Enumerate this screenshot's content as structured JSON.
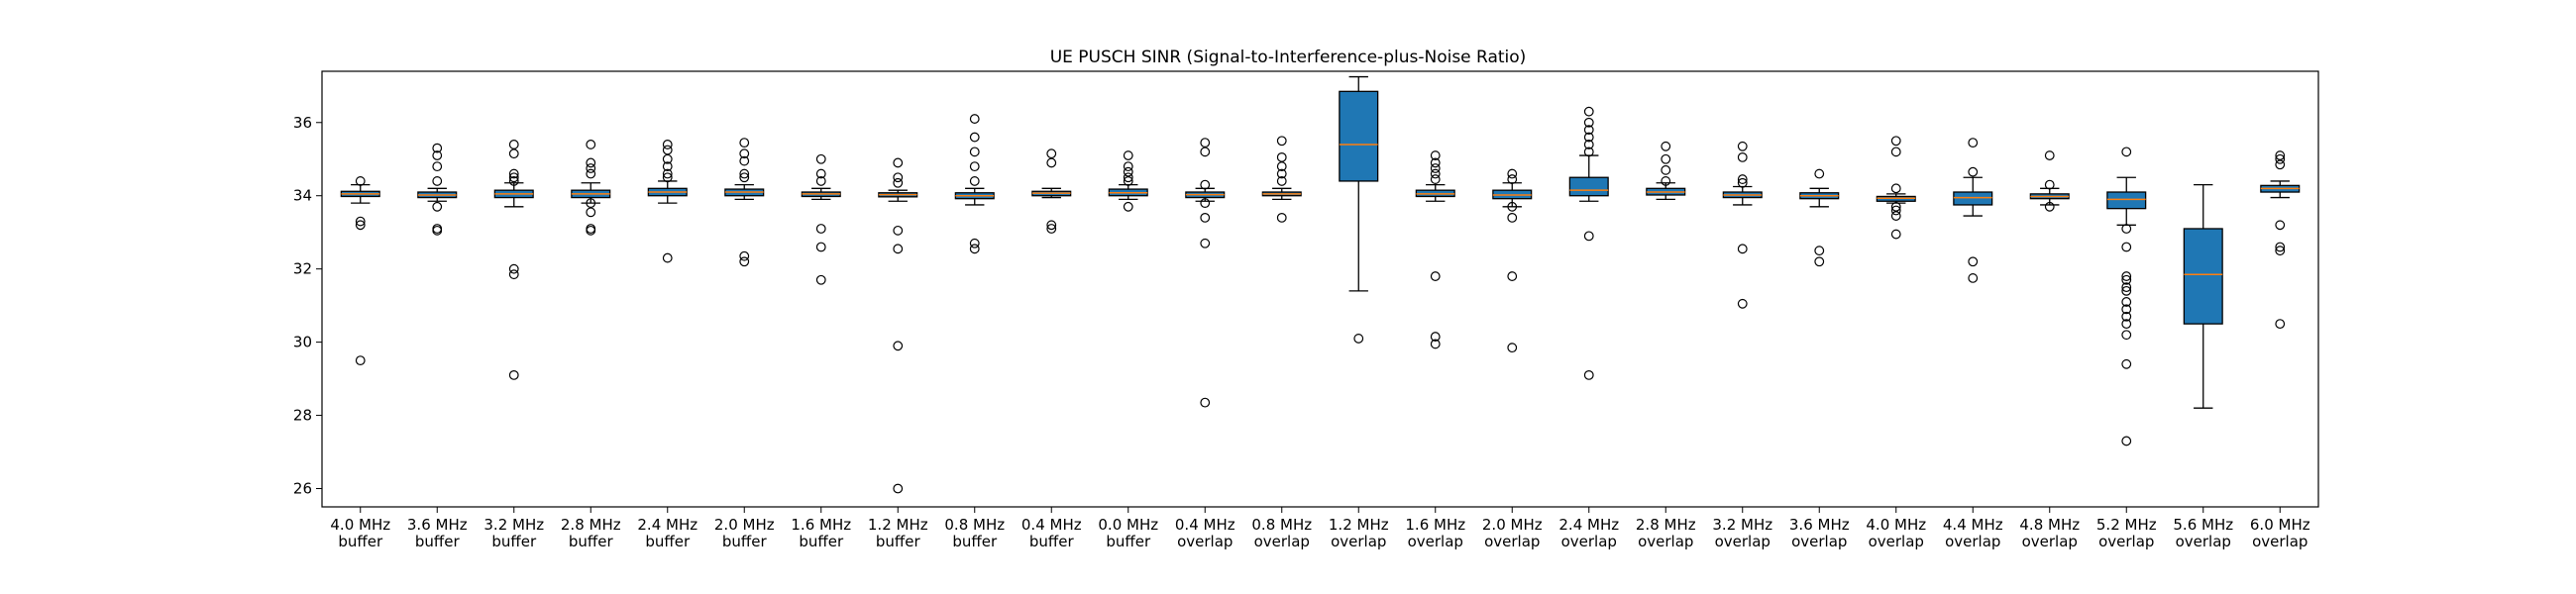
{
  "chart_data": {
    "type": "box",
    "title": "UE PUSCH SINR (Signal-to-Interference-plus-Noise Ratio)",
    "xlabel": "",
    "ylabel": "",
    "ylim": [
      25.5,
      37.4
    ],
    "yticks": [
      26,
      28,
      30,
      32,
      34,
      36
    ],
    "grid": false,
    "categories": [
      "4.0 MHz\nbuffer",
      "3.6 MHz\nbuffer",
      "3.2 MHz\nbuffer",
      "2.8 MHz\nbuffer",
      "2.4 MHz\nbuffer",
      "2.0 MHz\nbuffer",
      "1.6 MHz\nbuffer",
      "1.2 MHz\nbuffer",
      "0.8 MHz\nbuffer",
      "0.4 MHz\nbuffer",
      "0.0 MHz\nbuffer",
      "0.4 MHz\noverlap",
      "0.8 MHz\noverlap",
      "1.2 MHz\noverlap",
      "1.6 MHz\noverlap",
      "2.0 MHz\noverlap",
      "2.4 MHz\noverlap",
      "2.8 MHz\noverlap",
      "3.2 MHz\noverlap",
      "3.6 MHz\noverlap",
      "4.0 MHz\noverlap",
      "4.4 MHz\noverlap",
      "4.8 MHz\noverlap",
      "5.2 MHz\noverlap",
      "5.6 MHz\noverlap",
      "6.0 MHz\noverlap"
    ],
    "boxes": [
      {
        "q1": 33.98,
        "median": 34.05,
        "q3": 34.12,
        "whisker_low": 33.8,
        "whisker_high": 34.3,
        "outliers": [
          34.4,
          33.3,
          33.2,
          29.5
        ]
      },
      {
        "q1": 33.95,
        "median": 34.02,
        "q3": 34.1,
        "whisker_low": 33.85,
        "whisker_high": 34.2,
        "outliers": [
          35.3,
          35.1,
          34.8,
          34.4,
          33.7,
          33.1,
          33.05
        ]
      },
      {
        "q1": 33.95,
        "median": 34.05,
        "q3": 34.15,
        "whisker_low": 33.7,
        "whisker_high": 34.35,
        "outliers": [
          35.4,
          35.15,
          34.6,
          34.5,
          34.4,
          32.0,
          31.85,
          29.1
        ]
      },
      {
        "q1": 33.95,
        "median": 34.05,
        "q3": 34.15,
        "whisker_low": 33.8,
        "whisker_high": 34.35,
        "outliers": [
          35.4,
          34.9,
          34.75,
          34.6,
          33.8,
          33.55,
          33.1,
          33.05
        ]
      },
      {
        "q1": 34.0,
        "median": 34.1,
        "q3": 34.2,
        "whisker_low": 33.8,
        "whisker_high": 34.4,
        "outliers": [
          35.4,
          35.25,
          35.0,
          34.8,
          34.6,
          34.5,
          32.3
        ]
      },
      {
        "q1": 34.0,
        "median": 34.1,
        "q3": 34.18,
        "whisker_low": 33.9,
        "whisker_high": 34.3,
        "outliers": [
          35.45,
          35.15,
          34.95,
          34.6,
          34.5,
          32.35,
          32.2
        ]
      },
      {
        "q1": 33.98,
        "median": 34.05,
        "q3": 34.1,
        "whisker_low": 33.9,
        "whisker_high": 34.2,
        "outliers": [
          35.0,
          34.6,
          34.4,
          33.1,
          32.6,
          31.7
        ]
      },
      {
        "q1": 33.97,
        "median": 34.03,
        "q3": 34.08,
        "whisker_low": 33.85,
        "whisker_high": 34.15,
        "outliers": [
          34.9,
          34.5,
          34.35,
          33.05,
          32.55,
          29.9,
          26.0
        ]
      },
      {
        "q1": 33.92,
        "median": 34.0,
        "q3": 34.08,
        "whisker_low": 33.75,
        "whisker_high": 34.2,
        "outliers": [
          36.1,
          35.6,
          35.2,
          34.8,
          34.4,
          32.7,
          32.55
        ]
      },
      {
        "q1": 34.0,
        "median": 34.07,
        "q3": 34.12,
        "whisker_low": 33.95,
        "whisker_high": 34.2,
        "outliers": [
          35.15,
          34.9,
          33.2,
          33.1
        ]
      },
      {
        "q1": 34.0,
        "median": 34.08,
        "q3": 34.18,
        "whisker_low": 33.9,
        "whisker_high": 34.3,
        "outliers": [
          35.1,
          34.8,
          34.65,
          34.5,
          34.4,
          33.7
        ]
      },
      {
        "q1": 33.95,
        "median": 34.03,
        "q3": 34.1,
        "whisker_low": 33.85,
        "whisker_high": 34.2,
        "outliers": [
          35.45,
          35.2,
          34.3,
          33.8,
          33.4,
          32.7,
          28.35
        ]
      },
      {
        "q1": 34.0,
        "median": 34.05,
        "q3": 34.1,
        "whisker_low": 33.9,
        "whisker_high": 34.2,
        "outliers": [
          35.5,
          35.05,
          34.8,
          34.6,
          34.4,
          33.4
        ]
      },
      {
        "q1": 34.4,
        "median": 35.4,
        "q3": 36.85,
        "whisker_low": 31.4,
        "whisker_high": 37.25,
        "outliers": [
          30.1
        ]
      },
      {
        "q1": 33.98,
        "median": 34.05,
        "q3": 34.15,
        "whisker_low": 33.85,
        "whisker_high": 34.3,
        "outliers": [
          35.1,
          34.9,
          34.75,
          34.6,
          34.45,
          31.8,
          30.15,
          29.95
        ]
      },
      {
        "q1": 33.92,
        "median": 34.02,
        "q3": 34.15,
        "whisker_low": 33.7,
        "whisker_high": 34.35,
        "outliers": [
          34.6,
          34.45,
          33.7,
          33.4,
          31.8,
          29.85
        ]
      },
      {
        "q1": 34.0,
        "median": 34.15,
        "q3": 34.5,
        "whisker_low": 33.85,
        "whisker_high": 35.1,
        "outliers": [
          36.3,
          36.0,
          35.8,
          35.6,
          35.4,
          35.2,
          32.9,
          29.1
        ]
      },
      {
        "q1": 34.02,
        "median": 34.1,
        "q3": 34.2,
        "whisker_low": 33.9,
        "whisker_high": 34.35,
        "outliers": [
          35.35,
          35.0,
          34.7,
          34.4
        ]
      },
      {
        "q1": 33.95,
        "median": 34.02,
        "q3": 34.1,
        "whisker_low": 33.75,
        "whisker_high": 34.25,
        "outliers": [
          35.35,
          35.05,
          34.45,
          34.35,
          32.55,
          31.05
        ]
      },
      {
        "q1": 33.92,
        "median": 34.0,
        "q3": 34.08,
        "whisker_low": 33.7,
        "whisker_high": 34.2,
        "outliers": [
          34.6,
          32.5,
          32.2
        ]
      },
      {
        "q1": 33.85,
        "median": 33.93,
        "q3": 33.98,
        "whisker_low": 33.8,
        "whisker_high": 34.05,
        "outliers": [
          35.5,
          35.2,
          34.2,
          33.7,
          33.6,
          33.45,
          32.95
        ]
      },
      {
        "q1": 33.75,
        "median": 33.95,
        "q3": 34.1,
        "whisker_low": 33.45,
        "whisker_high": 34.5,
        "outliers": [
          35.45,
          34.65,
          32.2,
          31.75
        ]
      },
      {
        "q1": 33.92,
        "median": 33.98,
        "q3": 34.05,
        "whisker_low": 33.75,
        "whisker_high": 34.2,
        "outliers": [
          35.1,
          34.3,
          33.7
        ]
      },
      {
        "q1": 33.65,
        "median": 33.9,
        "q3": 34.1,
        "whisker_low": 33.2,
        "whisker_high": 34.5,
        "outliers": [
          35.2,
          33.1,
          32.6,
          31.8,
          31.7,
          31.5,
          31.4,
          31.1,
          30.9,
          30.7,
          30.5,
          30.2,
          29.4,
          27.3
        ]
      },
      {
        "q1": 30.5,
        "median": 31.85,
        "q3": 33.1,
        "whisker_low": 28.2,
        "whisker_high": 34.3,
        "outliers": []
      },
      {
        "q1": 34.1,
        "median": 34.2,
        "q3": 34.28,
        "whisker_low": 33.95,
        "whisker_high": 34.4,
        "outliers": [
          35.1,
          35.0,
          34.85,
          33.2,
          32.6,
          32.5,
          30.5
        ]
      }
    ],
    "colors": {
      "box_fill": "#1f77b4",
      "median": "#ff7f0e",
      "line": "#000000",
      "outlier_face": "none"
    }
  }
}
